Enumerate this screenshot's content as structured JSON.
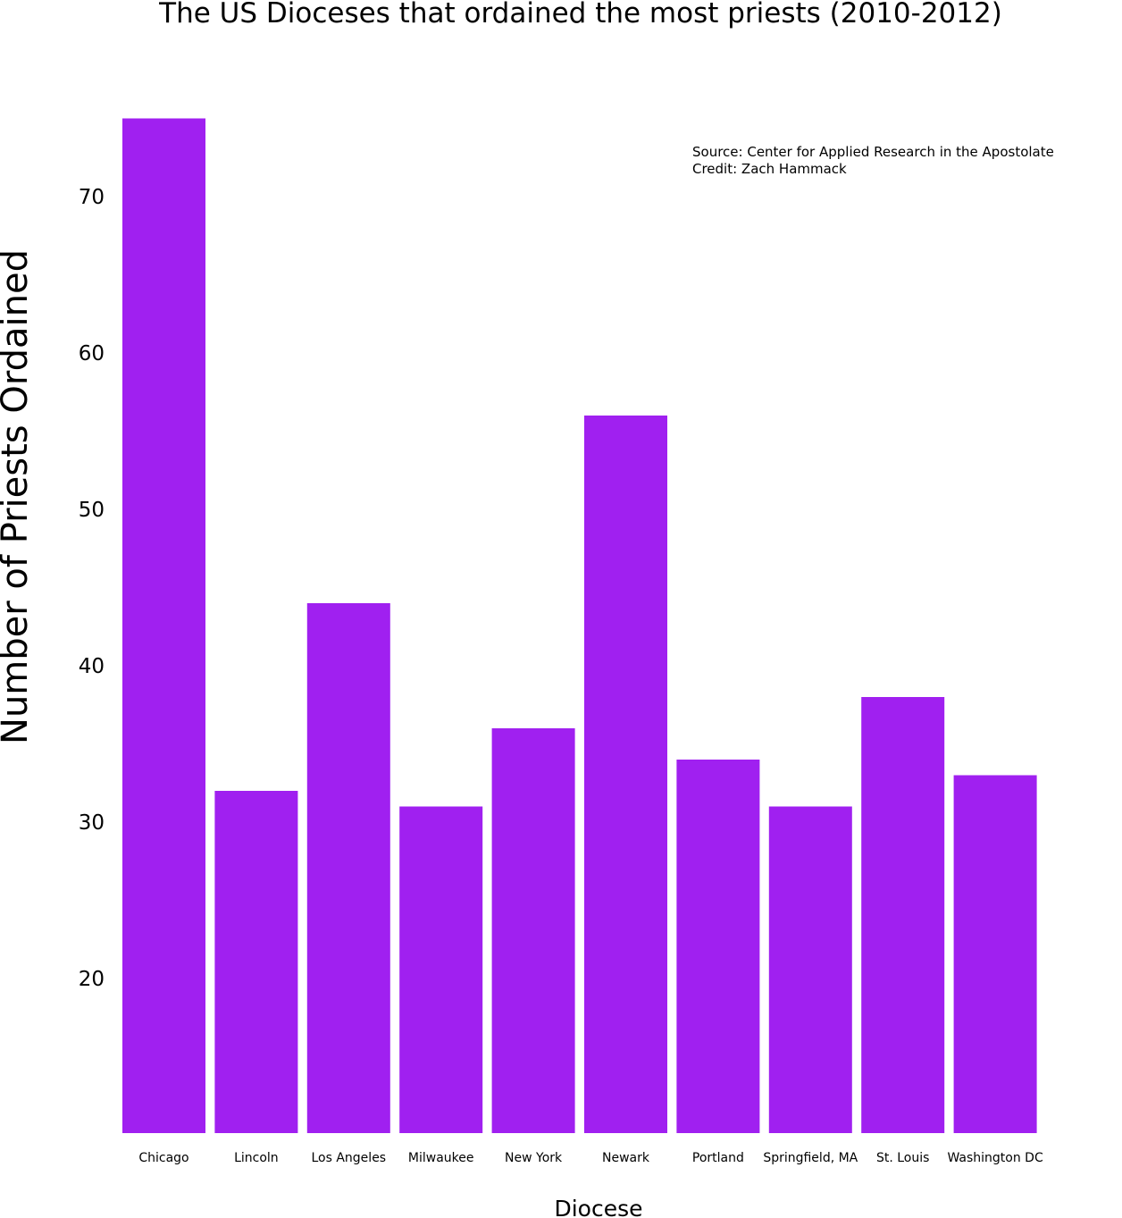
{
  "chart_data": {
    "type": "bar",
    "title": "The US Dioceses that ordained the most priests (2010-2012)",
    "xlabel": "Diocese",
    "ylabel": "Number of Priests Ordained",
    "categories": [
      "Chicago",
      "Lincoln",
      "Los Angeles",
      "Milwaukee",
      "New York",
      "Newark",
      "Portland",
      "Springfield, MA",
      "St. Louis",
      "Washington DC"
    ],
    "values": [
      75,
      32,
      44,
      31,
      36,
      56,
      34,
      31,
      38,
      33
    ],
    "ylim": [
      10,
      75
    ],
    "yticks": [
      20,
      30,
      40,
      50,
      60,
      70
    ],
    "bar_color": "#a020f0",
    "grid": false,
    "annotation": {
      "source": "Source: Center for Applied Research in the Apostolate",
      "credit": "Credit: Zach Hammack"
    }
  }
}
